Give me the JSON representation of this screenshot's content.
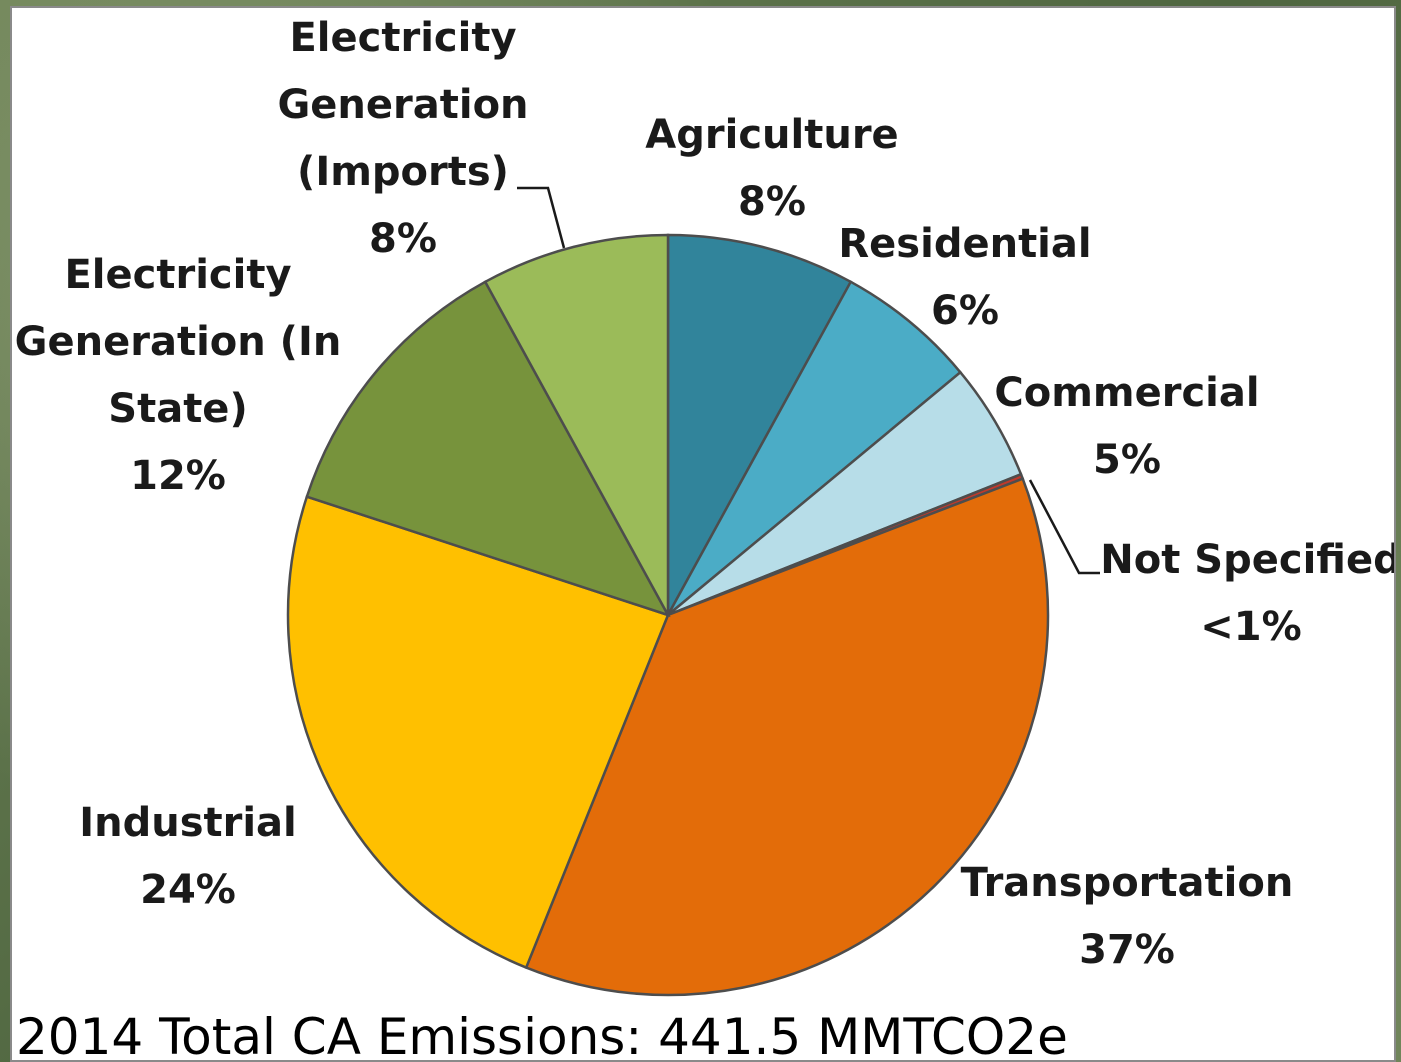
{
  "chart_data": {
    "type": "pie",
    "title": "2014 Total CA Emissions: 441.5 MMTCO2e",
    "slices": [
      {
        "name": "Agriculture",
        "value": 8,
        "pct_label": "8%",
        "color": "#31849b"
      },
      {
        "name": "Residential",
        "value": 6,
        "pct_label": "6%",
        "color": "#4bacc6"
      },
      {
        "name": "Commercial",
        "value": 5,
        "pct_label": "5%",
        "color": "#b7dde8"
      },
      {
        "name": "Not Specified",
        "value": 0.2,
        "pct_label": "<1%",
        "color": "#c0392b"
      },
      {
        "name": "Transportation",
        "value": 37,
        "pct_label": "37%",
        "color": "#e36c09"
      },
      {
        "name": "Industrial",
        "value": 24,
        "pct_label": "24%",
        "color": "#ffc000"
      },
      {
        "name": "Electricity Generation (In State)",
        "value": 12,
        "pct_label": "12%",
        "color": "#77933c"
      },
      {
        "name": "Electricity Generation (Imports)",
        "value": 8,
        "pct_label": "8%",
        "color": "#9bbb59"
      }
    ]
  }
}
